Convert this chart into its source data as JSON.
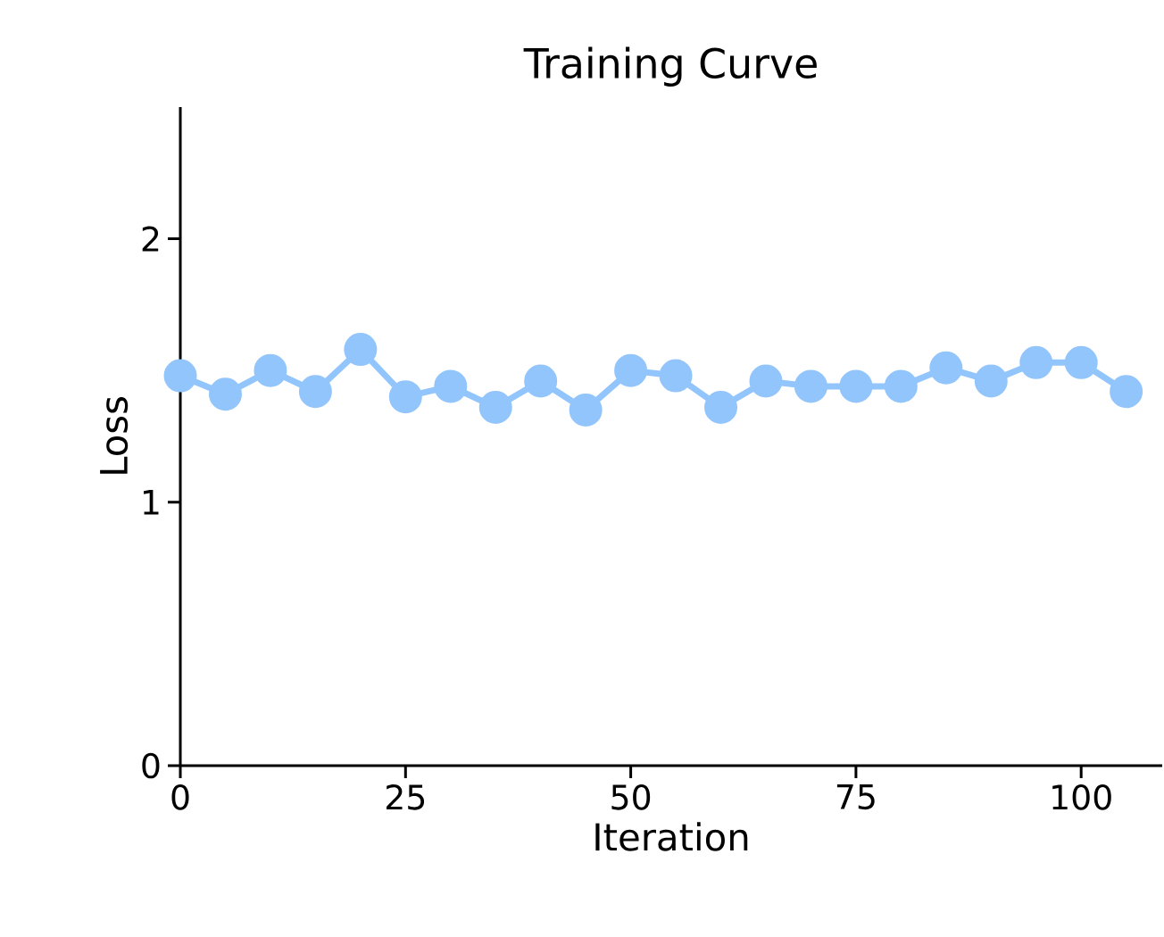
{
  "chart_data": {
    "type": "line",
    "title": "Training Curve",
    "xlabel": "Iteration",
    "ylabel": "Loss",
    "x": [
      0,
      5,
      10,
      15,
      20,
      25,
      30,
      35,
      40,
      45,
      50,
      55,
      60,
      65,
      70,
      75,
      80,
      85,
      90,
      95,
      100,
      105
    ],
    "series": [
      {
        "color": "#93c5fd",
        "values": [
          1.48,
          1.41,
          1.5,
          1.42,
          1.58,
          1.4,
          1.44,
          1.36,
          1.46,
          1.35,
          1.5,
          1.48,
          1.36,
          1.46,
          1.44,
          1.44,
          1.44,
          1.51,
          1.46,
          1.53,
          1.53,
          1.42
        ]
      }
    ],
    "xlim": [
      0,
      109
    ],
    "ylim": [
      0,
      2.5
    ],
    "xticks": [
      0,
      25,
      50,
      75,
      100
    ],
    "yticks": [
      0,
      1,
      2
    ],
    "grid": false,
    "marker": "circle",
    "line_style": "solid"
  }
}
